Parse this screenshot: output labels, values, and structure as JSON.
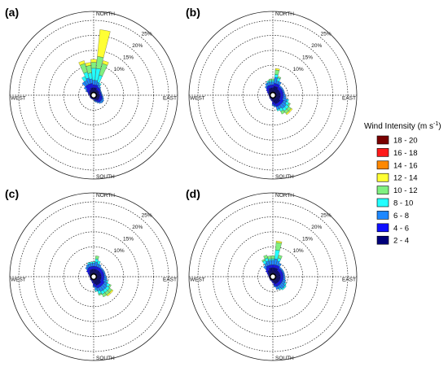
{
  "chart_data": {
    "type": "wind-rose",
    "ring_labels": [
      "10%",
      "15%",
      "20%",
      "25%"
    ],
    "ring_values": [
      5,
      10,
      15,
      20,
      25
    ],
    "max_percent": 28,
    "directions": [
      "NORTH",
      "EAST",
      "SOUTH",
      "WEST"
    ],
    "legend_title": "Wind Intensity (m s",
    "legend_superscript": "-1",
    "legend_title_close": ")",
    "legend": [
      {
        "label": "18 - 20",
        "color": "#7a0000"
      },
      {
        "label": "16 - 18",
        "color": "#ff1a1a"
      },
      {
        "label": "14 - 16",
        "color": "#ff8800"
      },
      {
        "label": "12 - 14",
        "color": "#ffff33"
      },
      {
        "label": "10 - 12",
        "color": "#80f080"
      },
      {
        "label": "8 - 10",
        "color": "#22ffff"
      },
      {
        "label": "6 - 8",
        "color": "#1e88ff"
      },
      {
        "label": "4 - 6",
        "color": "#1010ff"
      },
      {
        "label": "2 - 4",
        "color": "#00007a"
      }
    ],
    "bin_colors_low_to_high": [
      "#00007a",
      "#1010ff",
      "#1e88ff",
      "#22ffff",
      "#80f080",
      "#ffff33",
      "#ff8800",
      "#ff1a1a",
      "#7a0000"
    ],
    "sector_bearings_deg": [
      0,
      10,
      20,
      30,
      40,
      50,
      60,
      70,
      80,
      90,
      100,
      110,
      120,
      130,
      140,
      150,
      160,
      170,
      180,
      190,
      200,
      210,
      220,
      230,
      240,
      250,
      260,
      270,
      280,
      290,
      300,
      310,
      320,
      330,
      340,
      350
    ],
    "panels": [
      {
        "label": "(a)",
        "cumulative_percent": [
          [
            2.5,
            3.5,
            5,
            9,
            11,
            12
          ],
          [
            2.5,
            3.5,
            5,
            9,
            13,
            22
          ],
          [
            2.5,
            3.5,
            4.5,
            7,
            11,
            12
          ],
          [
            2,
            3,
            4,
            4.5
          ],
          [
            2,
            3,
            3.5
          ],
          [
            2,
            2.8,
            3
          ],
          [
            2,
            2.5,
            2.8
          ],
          [
            1.8,
            2.5,
            2.8
          ],
          [
            1.8,
            2.5,
            2.8
          ],
          [
            2,
            2.6,
            3
          ],
          [
            2,
            2.8,
            3.2
          ],
          [
            2,
            3,
            3.5
          ],
          [
            2,
            3,
            3.8
          ],
          [
            2.2,
            3,
            3.8
          ],
          [
            2,
            3,
            3.5
          ],
          [
            1.8,
            2.5,
            3
          ],
          [
            1.5,
            2,
            2.5
          ],
          [
            1.2,
            1.8,
            2.2
          ],
          [
            1,
            1.5
          ],
          [
            1,
            1.5
          ],
          [
            1,
            1.4
          ],
          [
            1,
            1.4
          ],
          [
            1,
            1.4
          ],
          [
            1,
            1.4
          ],
          [
            1,
            1.4
          ],
          [
            1,
            1.4
          ],
          [
            1,
            1.4
          ],
          [
            1,
            1.4
          ],
          [
            1.2,
            1.8
          ],
          [
            1.2,
            2
          ],
          [
            1.5,
            2.5,
            3
          ],
          [
            1.8,
            3,
            4
          ],
          [
            2,
            4,
            5.5
          ],
          [
            2,
            4,
            5.5,
            7
          ],
          [
            2.5,
            4,
            6,
            8,
            11,
            12
          ],
          [
            2.5,
            4,
            5.5,
            7.5,
            10,
            11
          ]
        ]
      },
      {
        "label": "(b)",
        "cumulative_percent": [
          [
            2.5,
            3.5,
            4.5,
            5,
            5.5
          ],
          [
            3,
            4,
            6,
            7,
            8.5,
            9
          ],
          [
            3,
            4,
            5,
            6,
            6.5
          ],
          [
            3,
            4,
            5
          ],
          [
            2.5,
            3.5,
            4
          ],
          [
            2.5,
            3.5,
            4
          ],
          [
            2.5,
            3.5,
            4
          ],
          [
            2.5,
            3.5,
            4
          ],
          [
            2.5,
            3.5,
            4
          ],
          [
            2.5,
            3.5,
            4.2
          ],
          [
            2.5,
            3.5,
            4.5
          ],
          [
            2.5,
            3.5,
            5,
            5.5
          ],
          [
            2.5,
            4,
            5,
            6,
            6.5
          ],
          [
            3,
            4,
            5.5,
            6.5,
            7.5,
            8
          ],
          [
            3,
            4,
            5.5,
            6.5,
            7.5,
            8
          ],
          [
            3,
            4,
            5,
            6,
            7
          ],
          [
            3,
            4,
            5,
            5.5
          ],
          [
            2.5,
            3.5,
            4
          ],
          [
            2,
            3,
            3.5
          ],
          [
            1.5,
            2
          ],
          [
            1.2,
            1.8
          ],
          [
            1.2,
            1.5
          ],
          [
            1.2,
            1.5
          ],
          [
            1.2,
            1.5
          ],
          [
            1,
            1.3
          ],
          [
            1,
            1.3
          ],
          [
            1,
            1.3
          ],
          [
            1,
            1.3
          ],
          [
            1.2,
            1.5
          ],
          [
            1.2,
            1.8
          ],
          [
            1.5,
            2.2
          ],
          [
            1.8,
            2.8
          ],
          [
            2,
            3.2,
            3.8
          ],
          [
            2.5,
            3.5,
            4.5
          ],
          [
            2.5,
            3.5,
            4.5,
            5
          ],
          [
            2.5,
            3.5,
            4.5,
            5,
            5.5
          ]
        ]
      },
      {
        "label": "(c)",
        "cumulative_percent": [
          [
            2.5,
            3.5,
            4.5,
            5
          ],
          [
            2.5,
            3.5,
            5,
            6,
            7
          ],
          [
            2.5,
            3.5,
            4.5,
            5.5
          ],
          [
            2.5,
            3.5,
            4.5
          ],
          [
            2.5,
            3.5,
            4
          ],
          [
            2.5,
            3.5,
            4
          ],
          [
            2.5,
            3.5,
            4
          ],
          [
            2.5,
            3.5,
            4
          ],
          [
            2.5,
            3.5,
            4
          ],
          [
            2.5,
            3.5,
            4.2
          ],
          [
            2.5,
            3.5,
            4.5
          ],
          [
            2.5,
            3.5,
            4.5,
            5
          ],
          [
            2.5,
            4,
            5,
            6,
            6.5
          ],
          [
            3,
            4,
            5.5,
            6.5,
            7.5,
            8
          ],
          [
            3,
            4,
            5.5,
            6.5,
            7.5,
            8
          ],
          [
            3,
            4,
            5.5,
            6.5,
            7.5
          ],
          [
            3,
            4,
            5,
            6,
            6.5
          ],
          [
            2.5,
            3.5,
            4.5,
            5
          ],
          [
            2,
            3,
            3.5
          ],
          [
            1.5,
            2.2
          ],
          [
            1.2,
            1.8
          ],
          [
            1.2,
            1.5
          ],
          [
            1.2,
            1.5
          ],
          [
            1.2,
            1.5
          ],
          [
            1,
            1.3
          ],
          [
            1,
            1.3
          ],
          [
            1,
            1.3
          ],
          [
            1,
            1.3
          ],
          [
            1.2,
            1.5
          ],
          [
            1.2,
            1.8
          ],
          [
            1.5,
            2.2
          ],
          [
            1.8,
            3
          ],
          [
            2,
            3.2,
            4
          ],
          [
            2.5,
            3.5,
            4.5
          ],
          [
            2.5,
            3.5,
            4.5,
            5
          ],
          [
            2.5,
            3.5,
            4.5,
            5
          ]
        ]
      },
      {
        "label": "(d)",
        "cumulative_percent": [
          [
            3,
            4,
            5.5,
            6,
            7
          ],
          [
            3,
            4,
            6,
            9,
            11.5,
            12
          ],
          [
            3,
            4,
            5.5,
            6.5,
            7.5
          ],
          [
            3,
            4,
            5
          ],
          [
            2.5,
            3.5,
            4
          ],
          [
            2.5,
            3.5,
            4
          ],
          [
            2.5,
            3.5,
            4
          ],
          [
            2.5,
            3.5,
            4
          ],
          [
            2.5,
            3.5,
            4
          ],
          [
            2.5,
            3.5,
            4
          ],
          [
            2.5,
            3.5,
            4.2
          ],
          [
            2.5,
            3.5,
            4.5
          ],
          [
            2.5,
            3.5,
            4.5,
            5
          ],
          [
            2.5,
            3.5,
            5,
            5.5
          ],
          [
            2.5,
            3.5,
            5,
            5.5
          ],
          [
            2.5,
            3.5,
            4.5,
            5
          ],
          [
            2.5,
            3.5,
            4.5
          ],
          [
            2,
            3,
            3.5
          ],
          [
            1.5,
            2.2
          ],
          [
            1.2,
            1.8
          ],
          [
            1.2,
            1.5
          ],
          [
            1.2,
            1.5
          ],
          [
            1.2,
            1.5
          ],
          [
            1,
            1.3
          ],
          [
            1,
            1.3
          ],
          [
            1,
            1.3
          ],
          [
            1,
            1.3
          ],
          [
            1,
            1.3
          ],
          [
            1.2,
            1.5
          ],
          [
            1.2,
            1.8
          ],
          [
            1.5,
            2.2
          ],
          [
            2,
            3
          ],
          [
            2.5,
            3.5,
            4.5
          ],
          [
            2.5,
            4,
            5,
            6,
            6.5
          ],
          [
            3,
            4,
            5.5,
            6.5,
            7.5
          ],
          [
            3,
            4,
            5.5,
            6,
            7
          ]
        ]
      }
    ]
  }
}
